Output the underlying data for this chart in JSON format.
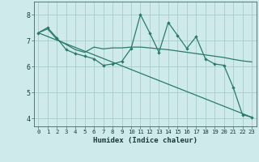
{
  "xlabel": "Humidex (Indice chaleur)",
  "ylabel": "",
  "bg_color": "#ceeaea",
  "grid_color": "#aacccc",
  "line_color": "#2a7a6a",
  "xlim": [
    -0.5,
    23.5
  ],
  "ylim": [
    3.7,
    8.5
  ],
  "yticks": [
    4,
    5,
    6,
    7,
    8
  ],
  "xticks": [
    0,
    1,
    2,
    3,
    4,
    5,
    6,
    7,
    8,
    9,
    10,
    11,
    12,
    13,
    14,
    15,
    16,
    17,
    18,
    19,
    20,
    21,
    22,
    23
  ],
  "line1_x": [
    0,
    1,
    2,
    3,
    4,
    5,
    6,
    7,
    8,
    9,
    10,
    11,
    12,
    13,
    14,
    15,
    16,
    17,
    18,
    19,
    20,
    21,
    22,
    23
  ],
  "line1_y": [
    7.3,
    7.5,
    7.1,
    6.65,
    6.5,
    6.4,
    6.3,
    6.05,
    6.1,
    6.2,
    6.7,
    8.0,
    7.3,
    6.55,
    7.7,
    7.2,
    6.7,
    7.15,
    6.3,
    6.1,
    6.05,
    5.2,
    4.15,
    4.05
  ],
  "line2_x": [
    0,
    1,
    2,
    3,
    4,
    5,
    6,
    7,
    8,
    9,
    10,
    11,
    12,
    13,
    14,
    15,
    16,
    17,
    18,
    19,
    20,
    21,
    22,
    23
  ],
  "line2_y": [
    7.3,
    7.45,
    7.05,
    6.85,
    6.65,
    6.55,
    6.75,
    6.68,
    6.72,
    6.72,
    6.75,
    6.75,
    6.72,
    6.68,
    6.65,
    6.6,
    6.55,
    6.5,
    6.45,
    6.4,
    6.35,
    6.28,
    6.22,
    6.18
  ],
  "line3_x": [
    0,
    23
  ],
  "line3_y": [
    7.3,
    4.05
  ]
}
